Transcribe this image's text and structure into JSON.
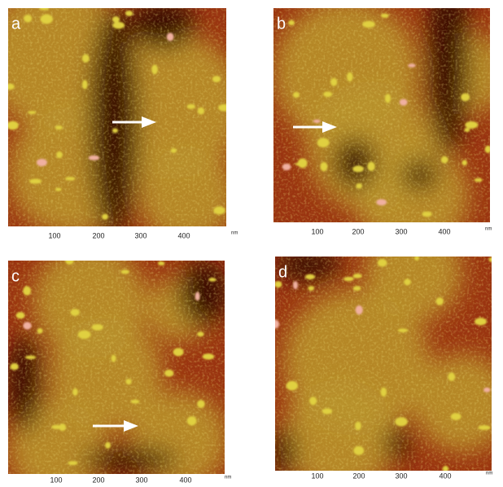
{
  "panels": [
    {
      "label": "a",
      "ticks": [
        100,
        200,
        300,
        400
      ],
      "unit": "nm"
    },
    {
      "label": "b",
      "ticks": [
        100,
        200,
        300,
        400
      ],
      "unit": "nm"
    },
    {
      "label": "c",
      "ticks": [
        100,
        200,
        300,
        400
      ],
      "unit": "nm"
    },
    {
      "label": "d",
      "ticks": [
        100,
        200,
        300,
        400
      ],
      "unit": "nm"
    }
  ]
}
